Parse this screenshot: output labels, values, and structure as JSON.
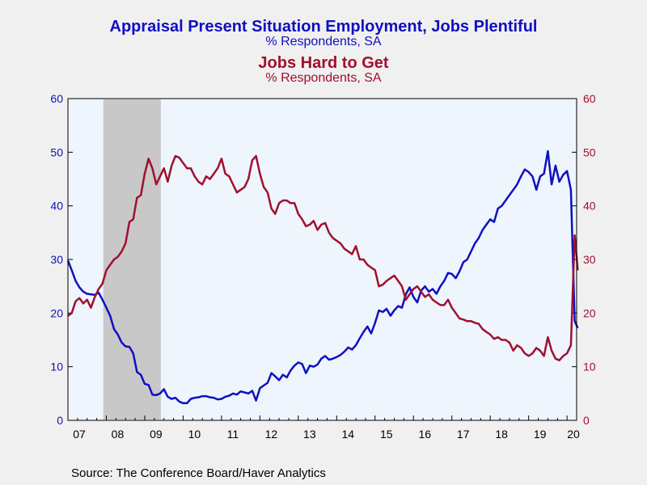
{
  "chart_data": {
    "type": "line",
    "title": "Appraisal Present Situation Employment, Jobs Plentiful",
    "subtitle": "% Respondents, SA",
    "title2": "Jobs Hard to Get",
    "subtitle2": "% Respondents, SA",
    "source": "Source:  The Conference Board/Haver Analytics",
    "x_tick_labels": [
      "07",
      "08",
      "09",
      "10",
      "11",
      "12",
      "13",
      "14",
      "15",
      "16",
      "17",
      "18",
      "19",
      "20"
    ],
    "y_left_ticks": [
      "0",
      "10",
      "20",
      "30",
      "40",
      "50",
      "60"
    ],
    "y_right_ticks": [
      "0",
      "10",
      "20",
      "30",
      "40",
      "50",
      "60"
    ],
    "ylim": [
      0,
      60
    ],
    "xlim": [
      2007.0,
      2020.25
    ],
    "grid": false,
    "recession": {
      "start": 2007.92,
      "end": 2009.42
    },
    "colors": {
      "plentiful": "#1010c0",
      "hard": "#a0102e",
      "axis_left": "#1010c0",
      "axis_right": "#a0102e",
      "recession": "#c8c8c8",
      "plot_bg": "#eef5fd"
    },
    "series": [
      {
        "name": "Jobs Plentiful",
        "axis": "left",
        "points": [
          [
            2007.0,
            29.8
          ],
          [
            2007.1,
            28.0
          ],
          [
            2007.2,
            26.0
          ],
          [
            2007.3,
            24.8
          ],
          [
            2007.4,
            24.0
          ],
          [
            2007.5,
            23.6
          ],
          [
            2007.6,
            23.5
          ],
          [
            2007.7,
            23.4
          ],
          [
            2007.8,
            23.8
          ],
          [
            2007.9,
            22.5
          ],
          [
            2008.0,
            21.0
          ],
          [
            2008.1,
            19.5
          ],
          [
            2008.2,
            17.0
          ],
          [
            2008.3,
            16.0
          ],
          [
            2008.4,
            14.5
          ],
          [
            2008.5,
            13.8
          ],
          [
            2008.6,
            13.7
          ],
          [
            2008.7,
            12.5
          ],
          [
            2008.8,
            9.0
          ],
          [
            2008.9,
            8.5
          ],
          [
            2009.0,
            6.8
          ],
          [
            2009.1,
            6.6
          ],
          [
            2009.2,
            4.8
          ],
          [
            2009.3,
            4.7
          ],
          [
            2009.4,
            5.0
          ],
          [
            2009.5,
            5.8
          ],
          [
            2009.6,
            4.4
          ],
          [
            2009.7,
            4.0
          ],
          [
            2009.8,
            4.2
          ],
          [
            2009.9,
            3.5
          ],
          [
            2010.0,
            3.2
          ],
          [
            2010.1,
            3.2
          ],
          [
            2010.2,
            4.0
          ],
          [
            2010.3,
            4.2
          ],
          [
            2010.4,
            4.3
          ],
          [
            2010.5,
            4.5
          ],
          [
            2010.6,
            4.5
          ],
          [
            2010.7,
            4.3
          ],
          [
            2010.8,
            4.2
          ],
          [
            2010.9,
            3.9
          ],
          [
            2011.0,
            4.0
          ],
          [
            2011.1,
            4.4
          ],
          [
            2011.2,
            4.6
          ],
          [
            2011.3,
            5.0
          ],
          [
            2011.4,
            4.8
          ],
          [
            2011.5,
            5.4
          ],
          [
            2011.6,
            5.2
          ],
          [
            2011.7,
            5.0
          ],
          [
            2011.8,
            5.5
          ],
          [
            2011.9,
            3.7
          ],
          [
            2012.0,
            6.0
          ],
          [
            2012.1,
            6.5
          ],
          [
            2012.2,
            7.0
          ],
          [
            2012.3,
            8.8
          ],
          [
            2012.4,
            8.2
          ],
          [
            2012.5,
            7.5
          ],
          [
            2012.6,
            8.5
          ],
          [
            2012.7,
            8.0
          ],
          [
            2012.8,
            9.3
          ],
          [
            2012.9,
            10.2
          ],
          [
            2013.0,
            10.8
          ],
          [
            2013.1,
            10.5
          ],
          [
            2013.2,
            8.8
          ],
          [
            2013.3,
            10.2
          ],
          [
            2013.4,
            10.0
          ],
          [
            2013.5,
            10.4
          ],
          [
            2013.6,
            11.5
          ],
          [
            2013.7,
            12.0
          ],
          [
            2013.8,
            11.3
          ],
          [
            2013.9,
            11.5
          ],
          [
            2014.0,
            11.8
          ],
          [
            2014.1,
            12.2
          ],
          [
            2014.2,
            12.8
          ],
          [
            2014.3,
            13.6
          ],
          [
            2014.4,
            13.2
          ],
          [
            2014.5,
            14.0
          ],
          [
            2014.6,
            15.3
          ],
          [
            2014.7,
            16.5
          ],
          [
            2014.8,
            17.5
          ],
          [
            2014.9,
            16.2
          ],
          [
            2015.0,
            18.2
          ],
          [
            2015.1,
            20.5
          ],
          [
            2015.2,
            20.2
          ],
          [
            2015.3,
            20.8
          ],
          [
            2015.4,
            19.5
          ],
          [
            2015.5,
            20.5
          ],
          [
            2015.6,
            21.3
          ],
          [
            2015.7,
            21.0
          ],
          [
            2015.8,
            23.5
          ],
          [
            2015.9,
            24.8
          ],
          [
            2016.0,
            23.0
          ],
          [
            2016.1,
            22.0
          ],
          [
            2016.2,
            24.2
          ],
          [
            2016.3,
            25.0
          ],
          [
            2016.4,
            24.0
          ],
          [
            2016.5,
            24.5
          ],
          [
            2016.6,
            23.6
          ],
          [
            2016.7,
            25.0
          ],
          [
            2016.8,
            26.0
          ],
          [
            2016.9,
            27.5
          ],
          [
            2017.0,
            27.3
          ],
          [
            2017.1,
            26.5
          ],
          [
            2017.2,
            27.8
          ],
          [
            2017.3,
            29.5
          ],
          [
            2017.4,
            30.0
          ],
          [
            2017.5,
            31.5
          ],
          [
            2017.6,
            33.0
          ],
          [
            2017.7,
            34.0
          ],
          [
            2017.8,
            35.5
          ],
          [
            2017.9,
            36.5
          ],
          [
            2018.0,
            37.5
          ],
          [
            2018.1,
            37.0
          ],
          [
            2018.2,
            39.5
          ],
          [
            2018.3,
            40.0
          ],
          [
            2018.4,
            41.0
          ],
          [
            2018.5,
            42.0
          ],
          [
            2018.6,
            43.0
          ],
          [
            2018.7,
            44.0
          ],
          [
            2018.8,
            45.5
          ],
          [
            2018.9,
            46.8
          ],
          [
            2019.0,
            46.3
          ],
          [
            2019.1,
            45.5
          ],
          [
            2019.2,
            43.0
          ],
          [
            2019.3,
            45.5
          ],
          [
            2019.4,
            46.0
          ],
          [
            2019.5,
            50.2
          ],
          [
            2019.6,
            44.0
          ],
          [
            2019.7,
            47.5
          ],
          [
            2019.8,
            44.5
          ],
          [
            2019.9,
            45.8
          ],
          [
            2020.0,
            46.5
          ],
          [
            2020.1,
            43.0
          ],
          [
            2020.2,
            18.5
          ],
          [
            2020.28,
            17.2
          ]
        ]
      },
      {
        "name": "Jobs Hard to Get",
        "axis": "right",
        "points": [
          [
            2007.0,
            19.5
          ],
          [
            2007.1,
            20.0
          ],
          [
            2007.2,
            22.2
          ],
          [
            2007.3,
            22.8
          ],
          [
            2007.4,
            21.8
          ],
          [
            2007.5,
            22.5
          ],
          [
            2007.6,
            21.0
          ],
          [
            2007.7,
            23.0
          ],
          [
            2007.8,
            24.5
          ],
          [
            2007.9,
            25.5
          ],
          [
            2008.0,
            28.0
          ],
          [
            2008.1,
            29.0
          ],
          [
            2008.2,
            30.0
          ],
          [
            2008.3,
            30.5
          ],
          [
            2008.4,
            31.5
          ],
          [
            2008.5,
            33.0
          ],
          [
            2008.6,
            37.0
          ],
          [
            2008.7,
            37.5
          ],
          [
            2008.8,
            41.5
          ],
          [
            2008.9,
            42.0
          ],
          [
            2009.0,
            46.0
          ],
          [
            2009.1,
            48.8
          ],
          [
            2009.2,
            47.0
          ],
          [
            2009.3,
            44.0
          ],
          [
            2009.4,
            45.5
          ],
          [
            2009.5,
            47.0
          ],
          [
            2009.6,
            44.5
          ],
          [
            2009.7,
            47.5
          ],
          [
            2009.8,
            49.3
          ],
          [
            2009.9,
            49.0
          ],
          [
            2010.0,
            48.0
          ],
          [
            2010.1,
            47.0
          ],
          [
            2010.2,
            47.0
          ],
          [
            2010.3,
            45.5
          ],
          [
            2010.4,
            44.5
          ],
          [
            2010.5,
            44.0
          ],
          [
            2010.6,
            45.5
          ],
          [
            2010.7,
            45.0
          ],
          [
            2010.8,
            46.0
          ],
          [
            2010.9,
            47.0
          ],
          [
            2011.0,
            48.8
          ],
          [
            2011.1,
            46.0
          ],
          [
            2011.2,
            45.5
          ],
          [
            2011.3,
            44.0
          ],
          [
            2011.4,
            42.5
          ],
          [
            2011.5,
            43.0
          ],
          [
            2011.6,
            43.5
          ],
          [
            2011.7,
            45.0
          ],
          [
            2011.8,
            48.5
          ],
          [
            2011.9,
            49.3
          ],
          [
            2012.0,
            46.0
          ],
          [
            2012.1,
            43.5
          ],
          [
            2012.2,
            42.5
          ],
          [
            2012.3,
            39.5
          ],
          [
            2012.4,
            38.5
          ],
          [
            2012.5,
            40.5
          ],
          [
            2012.6,
            41.0
          ],
          [
            2012.7,
            41.0
          ],
          [
            2012.8,
            40.5
          ],
          [
            2012.9,
            40.5
          ],
          [
            2013.0,
            38.5
          ],
          [
            2013.1,
            37.5
          ],
          [
            2013.2,
            36.2
          ],
          [
            2013.3,
            36.5
          ],
          [
            2013.4,
            37.2
          ],
          [
            2013.5,
            35.5
          ],
          [
            2013.6,
            36.5
          ],
          [
            2013.7,
            36.8
          ],
          [
            2013.8,
            35.0
          ],
          [
            2013.9,
            34.0
          ],
          [
            2014.0,
            33.5
          ],
          [
            2014.1,
            33.0
          ],
          [
            2014.2,
            32.0
          ],
          [
            2014.3,
            31.5
          ],
          [
            2014.4,
            31.0
          ],
          [
            2014.5,
            32.5
          ],
          [
            2014.6,
            30.0
          ],
          [
            2014.7,
            30.0
          ],
          [
            2014.8,
            29.0
          ],
          [
            2014.9,
            28.5
          ],
          [
            2015.0,
            28.0
          ],
          [
            2015.1,
            25.0
          ],
          [
            2015.2,
            25.3
          ],
          [
            2015.3,
            26.0
          ],
          [
            2015.4,
            26.5
          ],
          [
            2015.5,
            27.0
          ],
          [
            2015.6,
            26.0
          ],
          [
            2015.7,
            25.0
          ],
          [
            2015.8,
            22.5
          ],
          [
            2015.9,
            23.5
          ],
          [
            2016.0,
            24.5
          ],
          [
            2016.1,
            25.0
          ],
          [
            2016.2,
            24.0
          ],
          [
            2016.3,
            23.0
          ],
          [
            2016.4,
            23.5
          ],
          [
            2016.5,
            22.5
          ],
          [
            2016.6,
            22.0
          ],
          [
            2016.7,
            21.5
          ],
          [
            2016.8,
            21.5
          ],
          [
            2016.9,
            22.5
          ],
          [
            2017.0,
            21.0
          ],
          [
            2017.1,
            20.0
          ],
          [
            2017.2,
            19.0
          ],
          [
            2017.3,
            18.8
          ],
          [
            2017.4,
            18.5
          ],
          [
            2017.5,
            18.5
          ],
          [
            2017.6,
            18.2
          ],
          [
            2017.7,
            18.0
          ],
          [
            2017.8,
            17.0
          ],
          [
            2017.9,
            16.5
          ],
          [
            2018.0,
            16.0
          ],
          [
            2018.1,
            15.2
          ],
          [
            2018.2,
            15.5
          ],
          [
            2018.3,
            15.0
          ],
          [
            2018.4,
            15.0
          ],
          [
            2018.5,
            14.5
          ],
          [
            2018.6,
            13.0
          ],
          [
            2018.7,
            14.0
          ],
          [
            2018.8,
            13.5
          ],
          [
            2018.9,
            12.5
          ],
          [
            2019.0,
            12.0
          ],
          [
            2019.1,
            12.5
          ],
          [
            2019.2,
            13.5
          ],
          [
            2019.3,
            13.0
          ],
          [
            2019.4,
            12.0
          ],
          [
            2019.5,
            15.5
          ],
          [
            2019.6,
            13.0
          ],
          [
            2019.7,
            11.5
          ],
          [
            2019.8,
            11.2
          ],
          [
            2019.9,
            12.0
          ],
          [
            2020.0,
            12.5
          ],
          [
            2020.1,
            14.0
          ],
          [
            2020.2,
            34.5
          ],
          [
            2020.28,
            28.0
          ]
        ]
      }
    ]
  }
}
